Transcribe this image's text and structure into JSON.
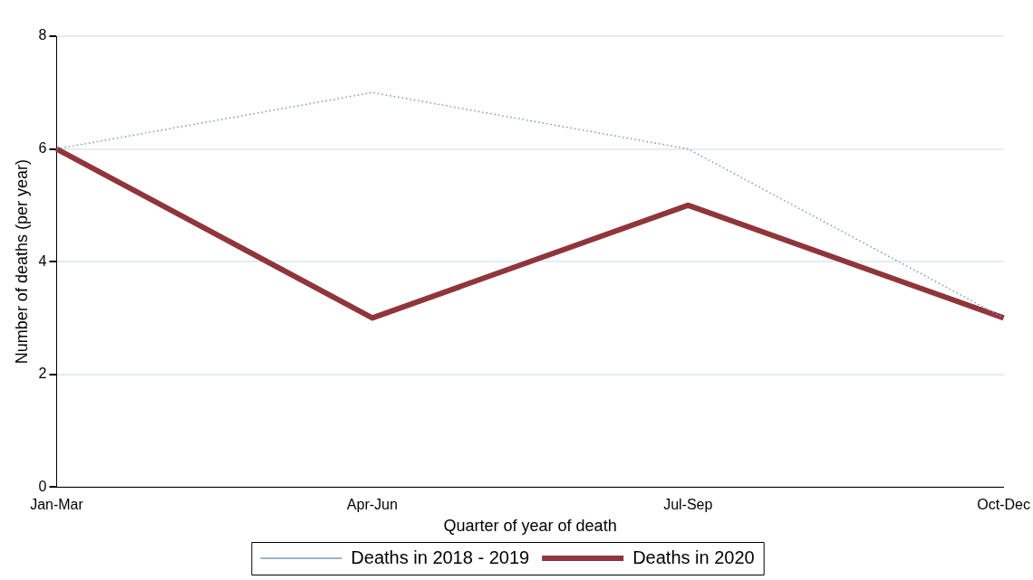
{
  "chart_data": {
    "type": "line",
    "xlabel": "Quarter of year of death",
    "ylabel": "Number of deaths (per year)",
    "categories": [
      "Jan-Mar",
      "Apr-Jun",
      "Jul-Sep",
      "Oct-Dec"
    ],
    "series": [
      {
        "name": "Deaths in 2018 - 2019",
        "color": "#7d98b3",
        "values": [
          6,
          7,
          6,
          3
        ],
        "line_style": "dotted"
      },
      {
        "name": "Deaths in 2020",
        "color": "#90353b",
        "values": [
          6,
          3,
          5,
          3
        ],
        "line_style": "solid"
      }
    ],
    "ylim": [
      0,
      8
    ],
    "yticks": [
      0,
      2,
      4,
      6,
      8
    ],
    "grid": "y",
    "legend": "bottom",
    "marker": "none"
  }
}
